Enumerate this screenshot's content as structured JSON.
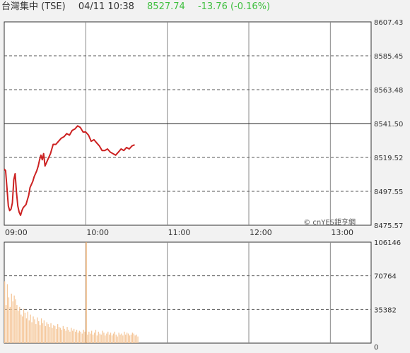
{
  "header": {
    "name": "台灣集中 (TSE)",
    "datetime": "04/11 10:38",
    "price": "8527.74",
    "change": "-13.76 (-0.16%)"
  },
  "watermark": "© cnYES鉅亨網",
  "colors": {
    "price_line": "#cc2222",
    "volume_bar": "#f5c79a",
    "volume_spike": "#f0a860",
    "up_down": "#3fbf3f",
    "grid": "#555555"
  },
  "chart_data": [
    {
      "type": "line",
      "title": "",
      "y_ticks": [
        "8607.43",
        "8585.45",
        "8563.48",
        "8541.50",
        "8519.52",
        "8497.55",
        "8475.57"
      ],
      "x_ticks": [
        "09:00",
        "10:00",
        "11:00",
        "12:00",
        "13:00"
      ],
      "ylim": [
        8475.57,
        8607.43
      ],
      "xlim_minutes": [
        0,
        270
      ],
      "reference_value": 8541.5,
      "series": [
        {
          "x": [
            0,
            1,
            2,
            3,
            4,
            5,
            6,
            7,
            8,
            9,
            10,
            11,
            12,
            13,
            14,
            15,
            16,
            17,
            18,
            19,
            20,
            21,
            22,
            23,
            24,
            25,
            26,
            27,
            28,
            29,
            30,
            32,
            34,
            36,
            38,
            40,
            42,
            44,
            46,
            48,
            50,
            52,
            54,
            56,
            58,
            60,
            62,
            64,
            66,
            68,
            70,
            72,
            74,
            76,
            78,
            80,
            82,
            84,
            86,
            88,
            90,
            92,
            94,
            96
          ],
          "values": [
            8512,
            8511,
            8500,
            8488,
            8485,
            8486,
            8490,
            8505,
            8509,
            8497,
            8488,
            8484,
            8482,
            8485,
            8487,
            8488,
            8489,
            8492,
            8495,
            8500,
            8502,
            8504,
            8507,
            8509,
            8511,
            8514,
            8518,
            8521,
            8518,
            8522,
            8514,
            8518,
            8522,
            8528,
            8528,
            8530,
            8532,
            8533,
            8535,
            8534,
            8537,
            8538,
            8540,
            8539,
            8536,
            8536,
            8534,
            8530,
            8531,
            8529,
            8527,
            8524,
            8524,
            8525,
            8523,
            8522,
            8521,
            8523,
            8525,
            8524,
            8526,
            8525,
            8527,
            8527.74
          ]
        }
      ]
    },
    {
      "type": "bar",
      "title": "",
      "y_ticks": [
        "106146",
        "70764",
        "35382",
        "0"
      ],
      "ylim": [
        0,
        106146
      ],
      "xlim_minutes": [
        0,
        270
      ],
      "x": [
        0,
        1,
        2,
        3,
        4,
        5,
        6,
        7,
        8,
        9,
        10,
        11,
        12,
        13,
        14,
        15,
        16,
        17,
        18,
        19,
        20,
        21,
        22,
        23,
        24,
        25,
        26,
        27,
        28,
        29,
        30,
        31,
        32,
        33,
        34,
        35,
        36,
        37,
        38,
        39,
        40,
        41,
        42,
        43,
        44,
        45,
        46,
        47,
        48,
        49,
        50,
        51,
        52,
        53,
        54,
        55,
        56,
        57,
        58,
        59,
        60,
        61,
        62,
        63,
        64,
        65,
        66,
        67,
        68,
        69,
        70,
        71,
        72,
        73,
        74,
        75,
        76,
        77,
        78,
        79,
        80,
        81,
        82,
        83,
        84,
        85,
        86,
        87,
        88,
        89,
        90,
        91,
        92,
        93,
        94,
        95,
        96,
        97,
        98
      ],
      "values": [
        65000,
        40000,
        62000,
        48000,
        38000,
        52000,
        44000,
        50000,
        46000,
        40000,
        34000,
        38000,
        30000,
        28000,
        36000,
        32000,
        26000,
        33000,
        24000,
        30000,
        22000,
        28000,
        25000,
        20000,
        27000,
        23000,
        19000,
        26000,
        21000,
        24000,
        18000,
        22000,
        20000,
        17000,
        21000,
        16000,
        19000,
        18000,
        15000,
        20000,
        17000,
        16000,
        14000,
        18000,
        15000,
        13000,
        17000,
        14000,
        12000,
        16000,
        13000,
        15000,
        12000,
        14000,
        11000,
        13000,
        12000,
        10000,
        14000,
        12000,
        106146,
        9000,
        12000,
        10000,
        13000,
        9000,
        11000,
        14000,
        8000,
        12000,
        10000,
        9000,
        13000,
        11000,
        8000,
        10000,
        12000,
        9000,
        11000,
        8000,
        10000,
        12000,
        9000,
        7000,
        11000,
        9000,
        10000,
        8000,
        12000,
        9000,
        11000,
        10000,
        8000,
        9000,
        11000,
        10000,
        8000,
        9000,
        7000
      ]
    }
  ]
}
